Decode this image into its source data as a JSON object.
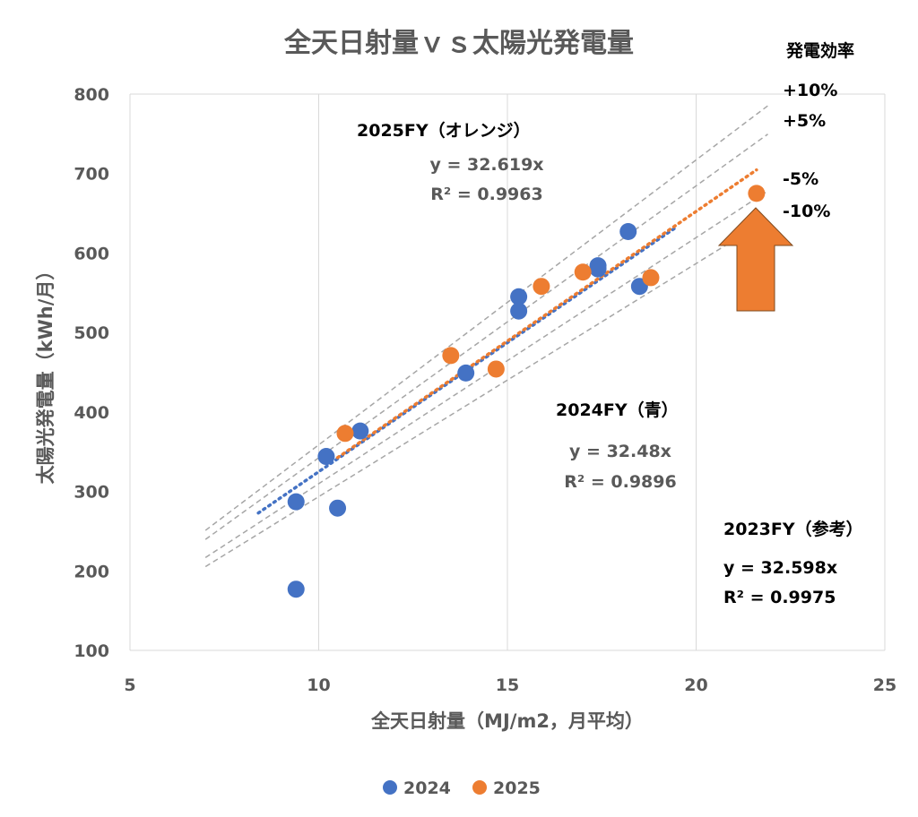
{
  "chart_data": {
    "type": "scatter",
    "title": "全天日射量ｖｓ太陽光発電量",
    "xlabel": "全天日射量（MJ/m2，月平均）",
    "ylabel": "太陽光発電量（kWh/月）",
    "xlim": [
      5,
      25
    ],
    "ylim": [
      100,
      800
    ],
    "x_ticks": [
      5,
      10,
      15,
      20,
      25
    ],
    "y_ticks": [
      100,
      200,
      300,
      400,
      500,
      600,
      700,
      800
    ],
    "grid": "vertical",
    "legend_position": "bottom",
    "series": [
      {
        "name": "2024",
        "color": "#4472C4",
        "points": [
          {
            "x": 9.4,
            "y": 177
          },
          {
            "x": 9.4,
            "y": 287
          },
          {
            "x": 10.2,
            "y": 344
          },
          {
            "x": 10.5,
            "y": 279
          },
          {
            "x": 11.1,
            "y": 376
          },
          {
            "x": 13.9,
            "y": 449
          },
          {
            "x": 15.3,
            "y": 527
          },
          {
            "x": 15.3,
            "y": 545
          },
          {
            "x": 17.4,
            "y": 580
          },
          {
            "x": 17.4,
            "y": 584
          },
          {
            "x": 18.2,
            "y": 627
          },
          {
            "x": 18.5,
            "y": 558
          }
        ],
        "trendline": {
          "slope": 32.48,
          "x_start": 8.4,
          "x_end": 19.5
        }
      },
      {
        "name": "2025",
        "color": "#ED7D31",
        "points": [
          {
            "x": 10.7,
            "y": 373
          },
          {
            "x": 13.5,
            "y": 471
          },
          {
            "x": 14.7,
            "y": 454
          },
          {
            "x": 15.9,
            "y": 558
          },
          {
            "x": 17.0,
            "y": 576
          },
          {
            "x": 18.8,
            "y": 569
          },
          {
            "x": 21.6,
            "y": 675
          }
        ],
        "trendline": {
          "slope": 32.619,
          "x_start": 10.5,
          "x_end": 21.6
        }
      }
    ],
    "reference_slope": 32.598,
    "efficiency_lines": [
      {
        "label": "+10%",
        "factor": 1.1
      },
      {
        "label": "+5%",
        "factor": 1.05
      },
      {
        "label": "-5%",
        "factor": 0.95
      },
      {
        "label": "-10%",
        "factor": 0.9
      }
    ],
    "efficiency_x_range": [
      7,
      21.9
    ],
    "efficiency_header": "発電効率",
    "annotations": {
      "fy2025": {
        "title": "2025FY（オレンジ）",
        "eq": "y = 32.619x",
        "r2": "R² = 0.9963"
      },
      "fy2024": {
        "title": "2024FY（青）",
        "eq": "y = 32.48x",
        "r2": "R² = 0.9896"
      },
      "fy2023": {
        "title": "2023FY（参考）",
        "eq": "y = 32.598x",
        "r2": "R² = 0.9975"
      }
    },
    "arrow": {
      "color": "#ED7D31",
      "direction": "up"
    }
  }
}
